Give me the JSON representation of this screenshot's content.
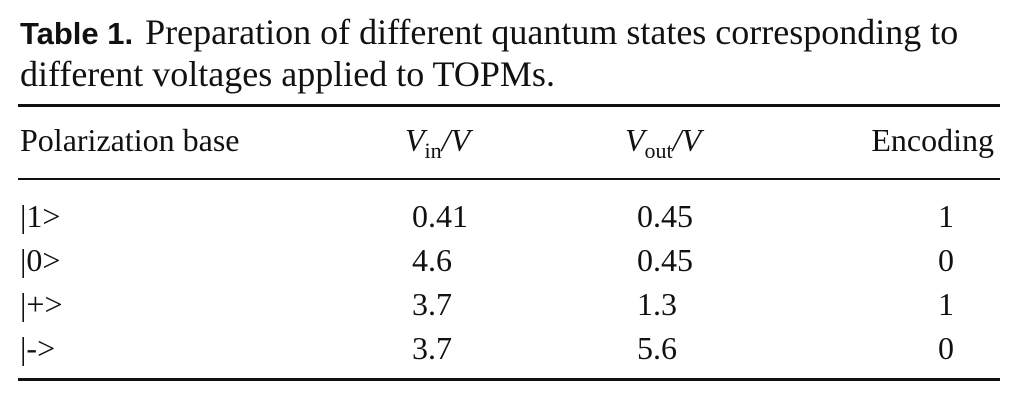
{
  "caption": {
    "label": "Table 1.",
    "text": "Preparation of different quantum states corresponding to different voltages applied to TOPMs."
  },
  "table": {
    "headers": {
      "col1": "Polarization base",
      "col2_symbol": "V",
      "col2_sub": "in",
      "col2_unit": "/V",
      "col3_symbol": "V",
      "col3_sub": "out",
      "col3_unit": "/V",
      "col4": "Encoding"
    },
    "rows": [
      {
        "base": "|1>",
        "vin": "0.41",
        "vout": "0.45",
        "encoding": "1"
      },
      {
        "base": "|0>",
        "vin": "4.6",
        "vout": "0.45",
        "encoding": "0"
      },
      {
        "base": "|+>",
        "vin": "3.7",
        "vout": "1.3",
        "encoding": "1"
      },
      {
        "base": "|->",
        "vin": "3.7",
        "vout": "5.6",
        "encoding": "0"
      }
    ]
  }
}
